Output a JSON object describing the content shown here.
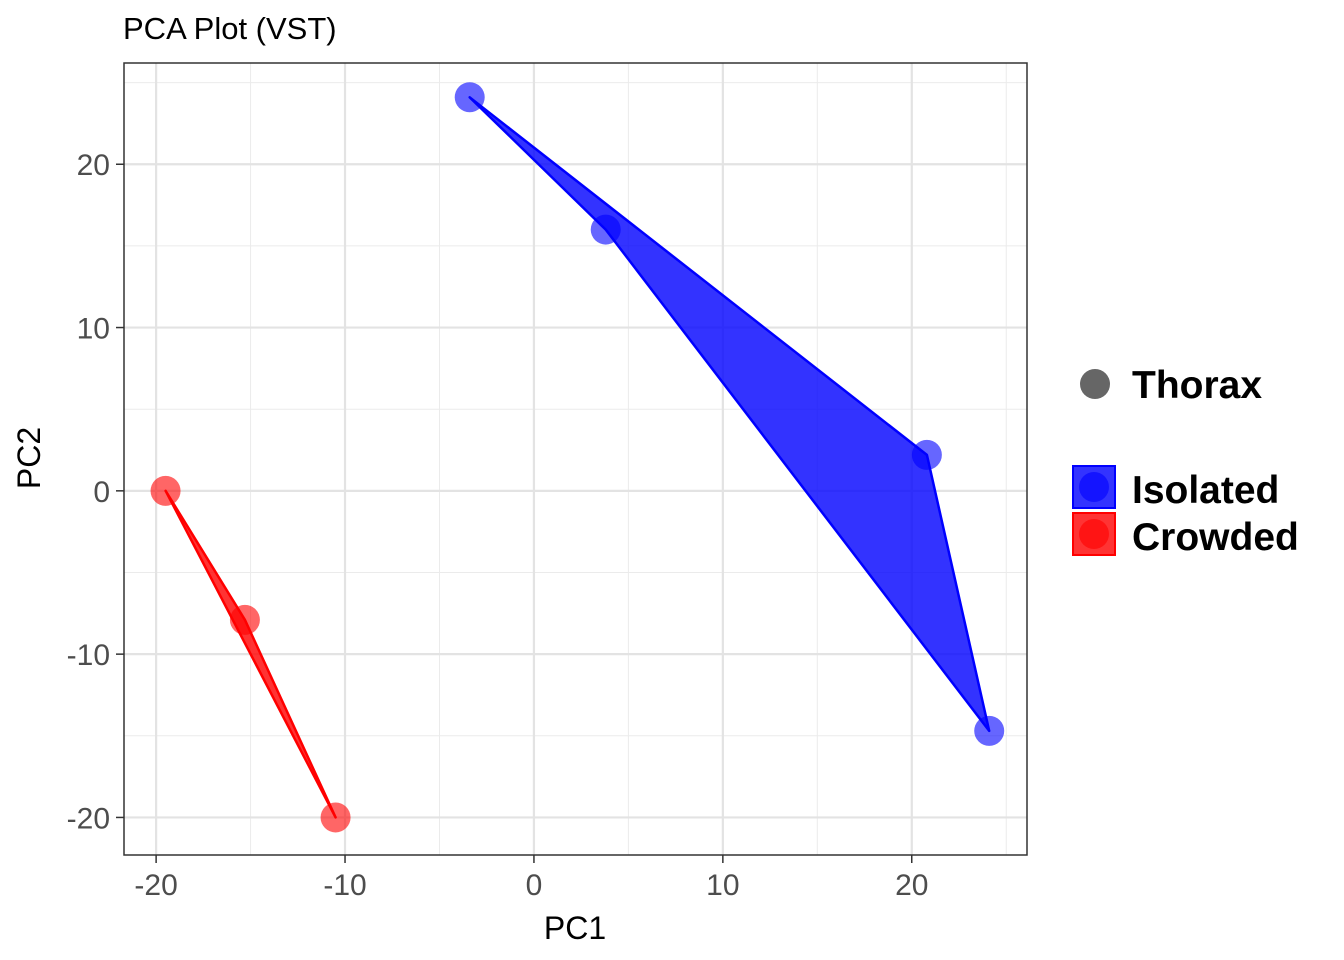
{
  "chart_data": {
    "type": "scatter",
    "title": "PCA Plot (VST)",
    "xlabel": "PC1",
    "ylabel": "PC2",
    "xlim": [
      -21.7,
      26.1
    ],
    "ylim": [
      -22.3,
      26.2
    ],
    "x_ticks": [
      -20,
      -10,
      0,
      10,
      20
    ],
    "y_ticks": [
      -20,
      -10,
      0,
      10,
      20
    ],
    "x_tick_labels": [
      "-20",
      "-10",
      "0",
      "10",
      "20"
    ],
    "y_tick_labels": [
      "-20",
      "-10",
      "0",
      "10",
      "20"
    ],
    "grid": true,
    "legend_position": "right",
    "shape_legend": {
      "label": "Thorax",
      "color": "#666666"
    },
    "series": [
      {
        "name": "Isolated",
        "color": "#0000ff",
        "points": [
          {
            "x": -3.4,
            "y": 24.1
          },
          {
            "x": 3.8,
            "y": 16.0
          },
          {
            "x": 20.8,
            "y": 2.2
          },
          {
            "x": 24.1,
            "y": -14.7
          }
        ],
        "hull_order": [
          0,
          2,
          3,
          1
        ]
      },
      {
        "name": "Crowded",
        "color": "#ff0000",
        "points": [
          {
            "x": -19.5,
            "y": 0.0
          },
          {
            "x": -15.3,
            "y": -7.9
          },
          {
            "x": -10.5,
            "y": -20.0
          }
        ],
        "hull_order": [
          0,
          2,
          1
        ]
      }
    ]
  }
}
